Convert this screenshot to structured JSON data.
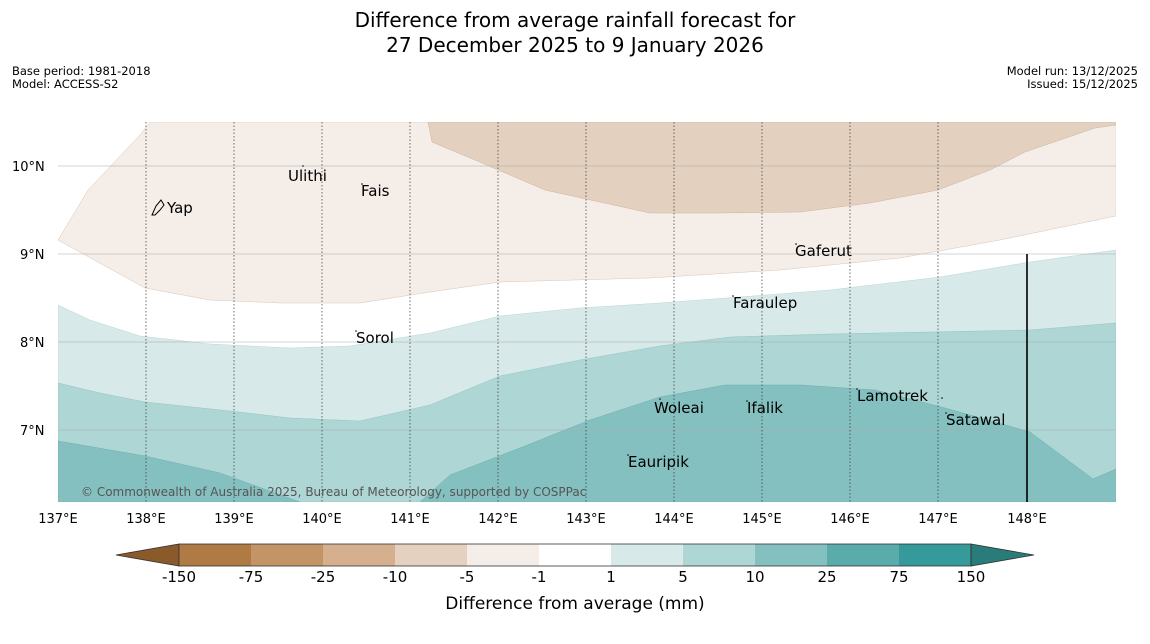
{
  "title": {
    "line1": "Difference from average rainfall forecast for",
    "line2": "27 December 2025 to 9 January 2026"
  },
  "meta_left": {
    "base_period": "Base period: 1981-2018",
    "model": "Model: ACCESS-S2"
  },
  "meta_right": {
    "model_run": "Model run: 13/12/2025",
    "issued": "Issued: 15/12/2025"
  },
  "map": {
    "lat_labels": [
      "10°N",
      "9°N",
      "8°N",
      "7°N"
    ],
    "lon_labels": [
      "137°E",
      "138°E",
      "139°E",
      "140°E",
      "141°E",
      "142°E",
      "143°E",
      "144°E",
      "145°E",
      "146°E",
      "147°E",
      "148°E"
    ],
    "places": [
      "Yap",
      "Ulithi",
      "Fais",
      "Sorol",
      "Gaferut",
      "Faraulep",
      "Woleai",
      "Ifalik",
      "Eauripik",
      "Lamotrek",
      "Satawal"
    ],
    "copyright": "© Commonwealth of Australia 2025, Bureau of Meteorology, supported by COSPPac"
  },
  "colorbar": {
    "tick_labels": [
      "-150",
      "-75",
      "-25",
      "-10",
      "-5",
      "-1",
      "1",
      "5",
      "10",
      "25",
      "75",
      "150"
    ],
    "colors": [
      "#8b5a2b",
      "#b07a45",
      "#c39465",
      "#d6b08e",
      "#e4d1bf",
      "#f4ede8",
      "#ffffff",
      "#d7e9e8",
      "#aed6d5",
      "#84c0bf",
      "#5aacab",
      "#359a99",
      "#2a7c7b"
    ],
    "label": "Difference from average (mm)"
  }
}
